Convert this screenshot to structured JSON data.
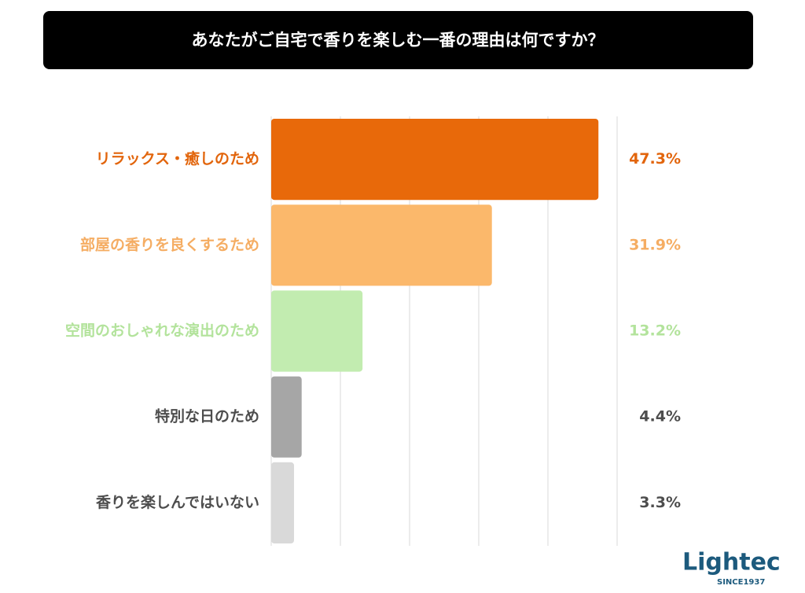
{
  "chart_data": {
    "type": "bar",
    "orientation": "horizontal",
    "title": "あなたがご自宅で香りを楽しむ一番の理由は何ですか？",
    "categories": [
      "リラックス・癒しのため",
      "部屋の香りを良くするため",
      "空間のおしゃれな演出のため",
      "特別な日のため",
      "香りを楽しんではいない"
    ],
    "values": [
      47.3,
      31.9,
      13.2,
      4.4,
      3.3
    ],
    "value_labels": [
      "47.3%",
      "31.9%",
      "13.2%",
      "4.4%",
      "3.3%"
    ],
    "colors": [
      "#e8690a",
      "#fbb86b",
      "#c2ecb0",
      "#a6a6a6",
      "#d9d9d9"
    ],
    "label_colors": [
      "#e2650c",
      "#f5ad63",
      "#b3e39c",
      "#4d4d4d",
      "#4d4d4d"
    ],
    "xlim": [
      0,
      50
    ],
    "xticks": [
      0,
      10,
      20,
      30,
      40,
      50
    ],
    "grid": true
  },
  "logo": {
    "name": "Lightec",
    "tagline": "SINCE1937"
  }
}
